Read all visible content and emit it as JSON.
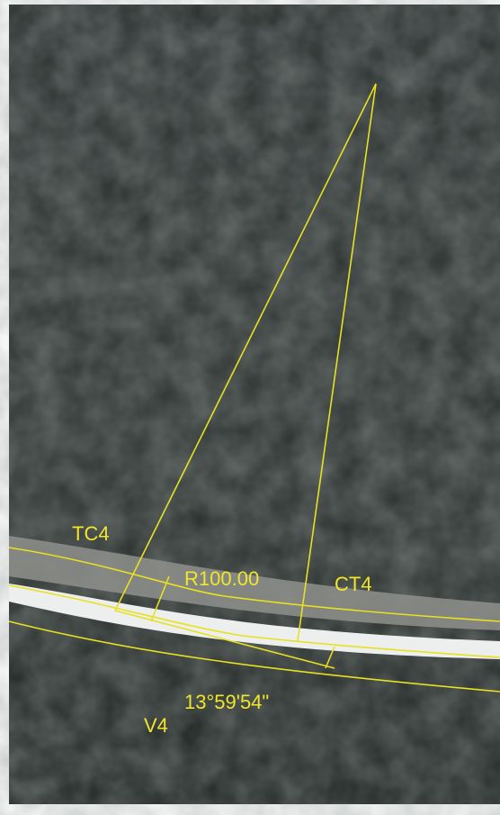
{
  "labels": {
    "tc": "TC4",
    "radius": "R100.00",
    "ct": "CT4",
    "angle": "13°59'54\"",
    "vertex": "V4"
  }
}
